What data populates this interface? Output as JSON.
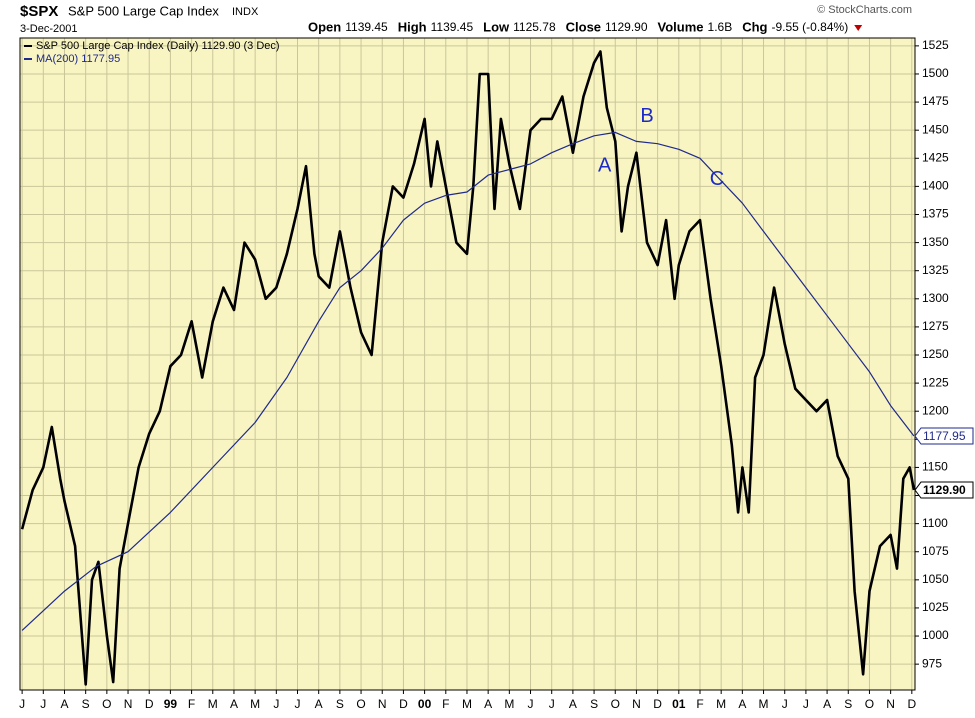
{
  "chart_data": {
    "type": "line",
    "symbol": "$SPX",
    "title": "S&P 500 Large Cap Index",
    "exchange": "INDX",
    "date": "3-Dec-2001",
    "quote": [
      {
        "label": "Open",
        "value": "1139.45"
      },
      {
        "label": "High",
        "value": "1139.45"
      },
      {
        "label": "Low",
        "value": "1125.78"
      },
      {
        "label": "Close",
        "value": "1129.90"
      },
      {
        "label": "Volume",
        "value": "1.6B"
      },
      {
        "label": "Chg",
        "value": "-9.55 (-0.84%)"
      }
    ],
    "credit": "© StockCharts.com",
    "background": "#f9f5c3",
    "grid": true,
    "xlim": [
      -0.1,
      42.15
    ],
    "ylim": [
      952,
      1532
    ],
    "yticks": [
      975,
      1000,
      1025,
      1050,
      1075,
      1100,
      1125,
      1150,
      1175,
      1200,
      1225,
      1250,
      1275,
      1300,
      1325,
      1350,
      1375,
      1400,
      1425,
      1450,
      1475,
      1500,
      1525
    ],
    "xticks": [
      {
        "value": 0,
        "label": "J"
      },
      {
        "value": 1,
        "label": "J"
      },
      {
        "value": 2,
        "label": "A"
      },
      {
        "value": 3,
        "label": "S"
      },
      {
        "value": 4,
        "label": "O"
      },
      {
        "value": 5,
        "label": "N"
      },
      {
        "value": 6,
        "label": "D"
      },
      {
        "value": 7,
        "label": "99"
      },
      {
        "value": 8,
        "label": "F"
      },
      {
        "value": 9,
        "label": "M"
      },
      {
        "value": 10,
        "label": "A"
      },
      {
        "value": 11,
        "label": "M"
      },
      {
        "value": 12,
        "label": "J"
      },
      {
        "value": 13,
        "label": "J"
      },
      {
        "value": 14,
        "label": "A"
      },
      {
        "value": 15,
        "label": "S"
      },
      {
        "value": 16,
        "label": "O"
      },
      {
        "value": 17,
        "label": "N"
      },
      {
        "value": 18,
        "label": "D"
      },
      {
        "value": 19,
        "label": "00"
      },
      {
        "value": 20,
        "label": "F"
      },
      {
        "value": 21,
        "label": "M"
      },
      {
        "value": 22,
        "label": "A"
      },
      {
        "value": 23,
        "label": "M"
      },
      {
        "value": 24,
        "label": "J"
      },
      {
        "value": 25,
        "label": "J"
      },
      {
        "value": 26,
        "label": "A"
      },
      {
        "value": 27,
        "label": "S"
      },
      {
        "value": 28,
        "label": "O"
      },
      {
        "value": 29,
        "label": "N"
      },
      {
        "value": 30,
        "label": "D"
      },
      {
        "value": 31,
        "label": "01"
      },
      {
        "value": 32,
        "label": "F"
      },
      {
        "value": 33,
        "label": "M"
      },
      {
        "value": 34,
        "label": "A"
      },
      {
        "value": 35,
        "label": "M"
      },
      {
        "value": 36,
        "label": "J"
      },
      {
        "value": 37,
        "label": "J"
      },
      {
        "value": 38,
        "label": "A"
      },
      {
        "value": 39,
        "label": "S"
      },
      {
        "value": 40,
        "label": "O"
      },
      {
        "value": 41,
        "label": "N"
      },
      {
        "value": 42,
        "label": "D"
      }
    ],
    "series": [
      {
        "name": "S&P 500 Large Cap Index (Daily) 1129.90 (3 Dec)",
        "color": "#000000",
        "width": 2.6,
        "last_label": "1129.90",
        "x": [
          0,
          0.5,
          1,
          1.4,
          1.8,
          2,
          2.5,
          3,
          3.3,
          3.6,
          4,
          4.3,
          4.6,
          5,
          5.5,
          6,
          6.5,
          7,
          7.5,
          8,
          8.5,
          9,
          9.5,
          10,
          10.5,
          11,
          11.5,
          12,
          12.5,
          13,
          13.4,
          13.8,
          14,
          14.5,
          15,
          15.5,
          16,
          16.5,
          17,
          17.5,
          18,
          18.5,
          19,
          19.3,
          19.6,
          20,
          20.5,
          21,
          21.3,
          21.6,
          22,
          22.3,
          22.6,
          23,
          23.5,
          24,
          24.5,
          25,
          25.5,
          26,
          26.5,
          27,
          27.3,
          27.6,
          28,
          28.3,
          28.6,
          29,
          29.5,
          30,
          30.4,
          30.8,
          31,
          31.5,
          32,
          32.5,
          33,
          33.5,
          33.8,
          34,
          34.3,
          34.6,
          35,
          35.5,
          36,
          36.5,
          37,
          37.5,
          38,
          38.5,
          39,
          39.3,
          39.7,
          40,
          40.5,
          41,
          41.3,
          41.6,
          41.9,
          42.1
        ],
        "values": [
          1095,
          1130,
          1150,
          1186,
          1140,
          1120,
          1080,
          957,
          1050,
          1066,
          1000,
          959,
          1060,
          1100,
          1150,
          1180,
          1200,
          1240,
          1250,
          1280,
          1230,
          1280,
          1310,
          1290,
          1350,
          1335,
          1300,
          1310,
          1340,
          1380,
          1418,
          1340,
          1320,
          1310,
          1360,
          1310,
          1270,
          1250,
          1350,
          1400,
          1390,
          1420,
          1460,
          1400,
          1440,
          1400,
          1350,
          1340,
          1400,
          1500,
          1500,
          1380,
          1460,
          1420,
          1380,
          1450,
          1460,
          1460,
          1480,
          1430,
          1480,
          1510,
          1520,
          1470,
          1440,
          1360,
          1400,
          1430,
          1350,
          1330,
          1370,
          1300,
          1330,
          1360,
          1370,
          1300,
          1240,
          1170,
          1110,
          1150,
          1110,
          1230,
          1250,
          1310,
          1260,
          1220,
          1210,
          1200,
          1210,
          1160,
          1140,
          1040,
          966,
          1040,
          1080,
          1090,
          1060,
          1140,
          1150,
          1129.9
        ]
      },
      {
        "name": "MA(200) 1177.95",
        "color": "#1f2a8c",
        "width": 1.2,
        "last_label": "1177.95",
        "x": [
          0,
          2,
          3.5,
          5,
          7,
          9,
          11,
          12.5,
          14,
          15,
          16,
          17,
          18,
          19,
          20,
          21,
          22,
          23,
          24,
          25,
          26,
          27,
          28,
          29,
          30,
          31,
          32,
          33,
          34,
          35,
          36,
          37,
          38,
          39,
          40,
          41,
          42.1
        ],
        "values": [
          1005,
          1040,
          1062,
          1075,
          1110,
          1150,
          1190,
          1230,
          1280,
          1310,
          1325,
          1345,
          1370,
          1385,
          1392,
          1395,
          1410,
          1415,
          1420,
          1430,
          1438,
          1445,
          1448,
          1440,
          1438,
          1433,
          1425,
          1405,
          1385,
          1360,
          1335,
          1310,
          1285,
          1260,
          1235,
          1205,
          1177.95
        ]
      }
    ],
    "annotations": [
      {
        "text": "A",
        "x": 27.5,
        "y": 1418,
        "color": "#1c2bc8"
      },
      {
        "text": "B",
        "x": 29.5,
        "y": 1462,
        "color": "#1c2bc8"
      },
      {
        "text": "C",
        "x": 32.8,
        "y": 1406,
        "color": "#1c2bc8"
      }
    ]
  }
}
